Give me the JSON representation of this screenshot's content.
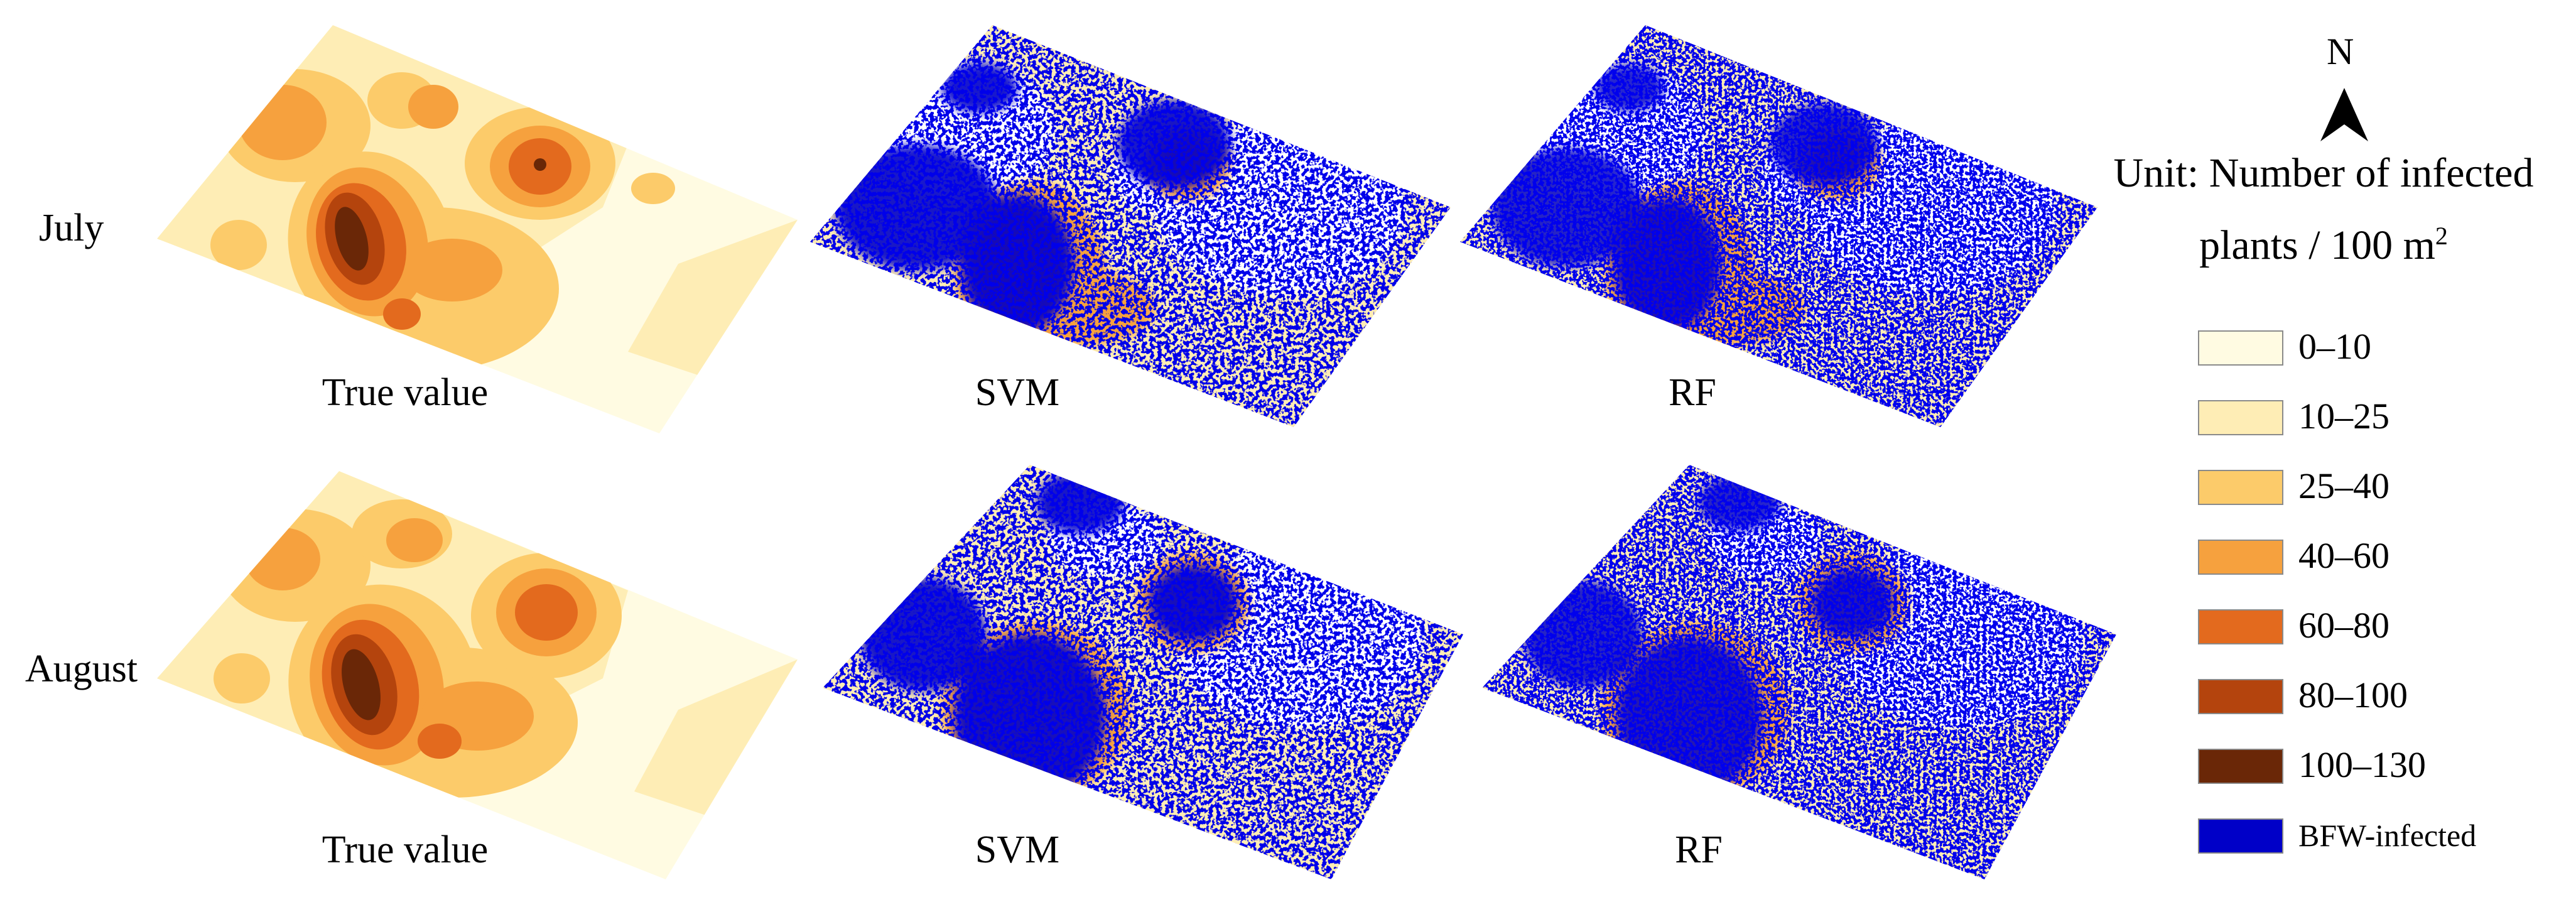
{
  "rows": [
    {
      "label": "July",
      "panels": [
        "True value",
        "SVM",
        "RF"
      ]
    },
    {
      "label": "August",
      "panels": [
        "True value",
        "SVM",
        "RF"
      ]
    }
  ],
  "north": {
    "label": "N",
    "icon": "north-arrow-icon"
  },
  "legend": {
    "title_line1": "Unit: Number of infected",
    "title_line2_prefix": "plants / 100 m",
    "title_line2_sup": "2",
    "items": [
      {
        "label": "0–10",
        "color": "#FFFBE2"
      },
      {
        "label": "10–25",
        "color": "#FEEDB5"
      },
      {
        "label": "25–40",
        "color": "#FCCB6A"
      },
      {
        "label": "40–60",
        "color": "#F6A13E"
      },
      {
        "label": "60–80",
        "color": "#E36A1E"
      },
      {
        "label": "80–100",
        "color": "#B4440D"
      },
      {
        "label": "100–130",
        "color": "#6A2707"
      },
      {
        "label": "BFW-infected",
        "color": "#0000C8"
      }
    ]
  }
}
